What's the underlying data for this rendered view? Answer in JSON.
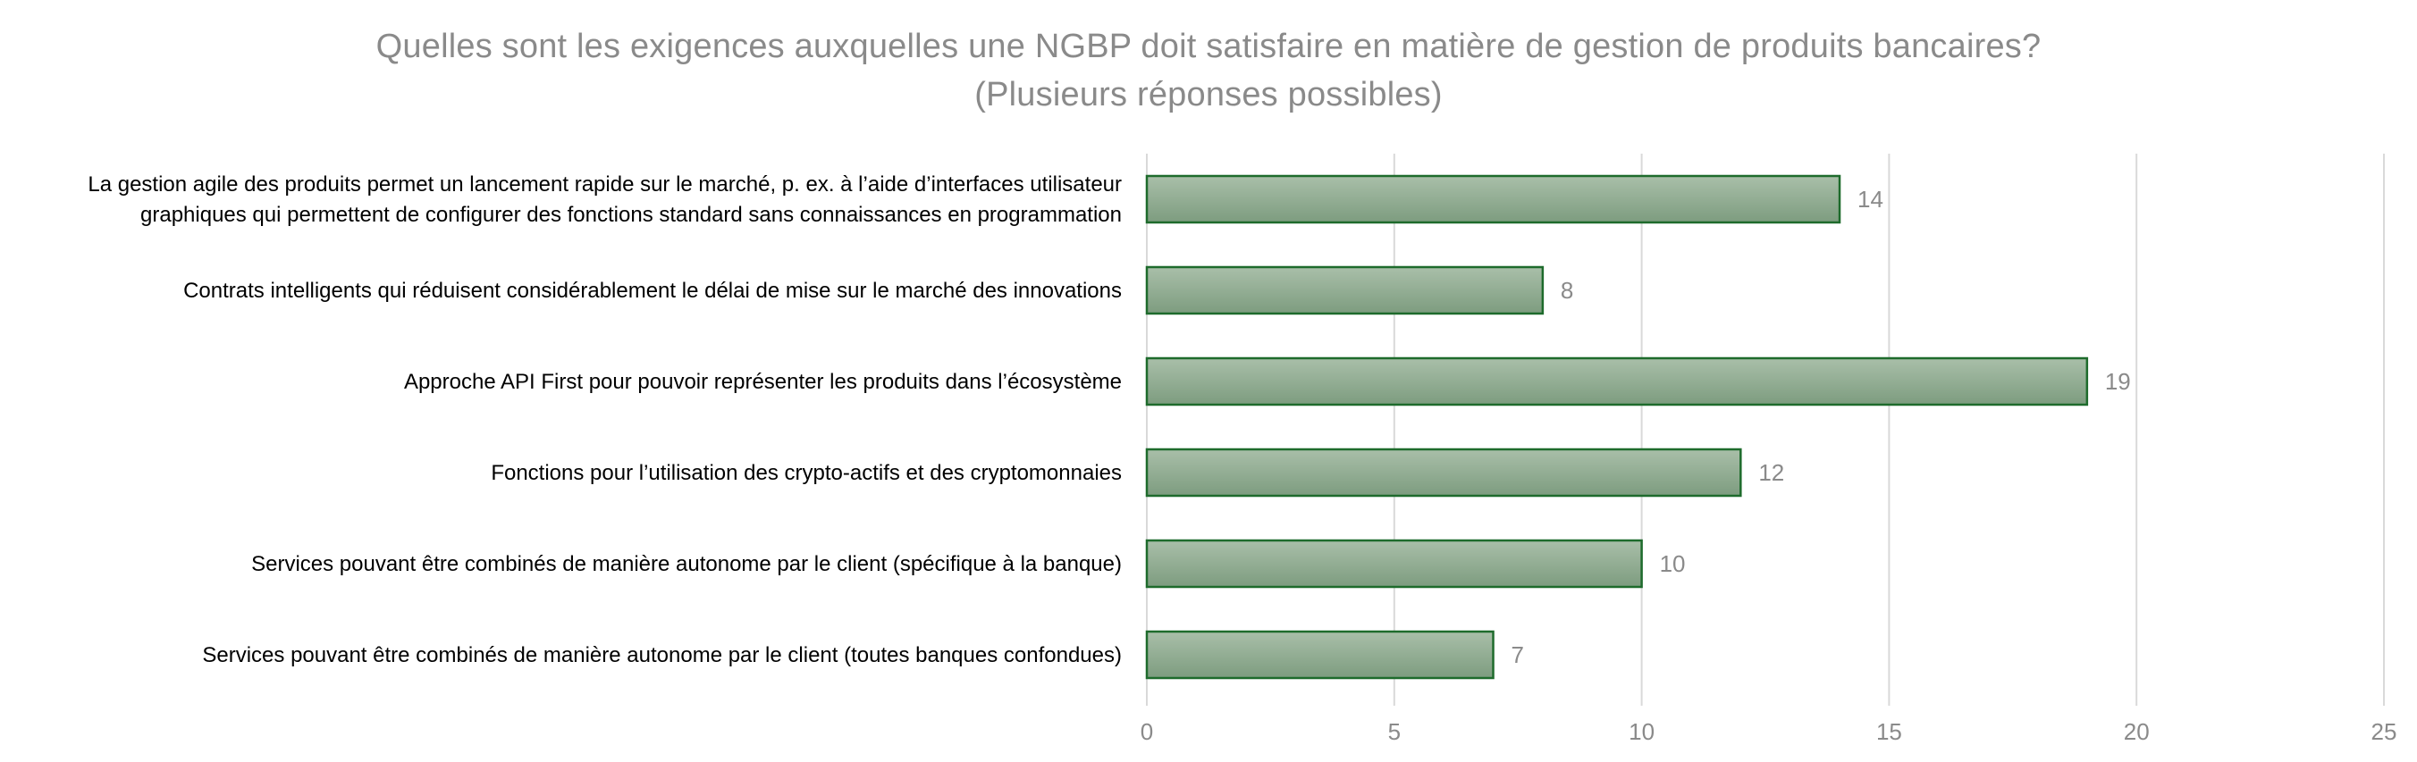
{
  "title": {
    "line1": "Quelles sont les exigences auxquelles une NGBP doit satisfaire en matière de gestion de produits bancaires?",
    "line2": "(Plusieurs réponses possibles)"
  },
  "colors": {
    "bar_fill_top": "#a9bfa9",
    "bar_fill_bottom": "#7d9c7f",
    "bar_stroke": "#1e6b2c",
    "gridline": "#d9d9d9",
    "label_text": "#000000",
    "value_text": "#8a8a8a",
    "tick_text": "#8a8a8a"
  },
  "chart_data": {
    "type": "bar",
    "orientation": "horizontal",
    "title": "Quelles sont les exigences auxquelles une NGBP doit satisfaire en matière de gestion de produits bancaires? (Plusieurs réponses possibles)",
    "categories": [
      [
        "La gestion agile des produits permet un lancement rapide sur le marché, p. ex. à l’aide d’interfaces utilisateur",
        "graphiques qui permettent de configurer des fonctions standard sans connaissances en programmation"
      ],
      [
        "Contrats intelligents qui réduisent considérablement le délai de mise sur le marché des innovations"
      ],
      [
        "Approche API First pour pouvoir représenter les produits dans l’écosystème"
      ],
      [
        "Fonctions pour l’utilisation des crypto-actifs et des cryptomonnaies"
      ],
      [
        "Services pouvant être combinés de manière autonome par le client (spécifique à la banque)"
      ],
      [
        "Services pouvant être combinés de manière autonome par le client (toutes banques confondues)"
      ]
    ],
    "values": [
      14,
      8,
      19,
      12,
      10,
      7
    ],
    "data_labels": [
      "14",
      "8",
      "19",
      "12",
      "10",
      "7"
    ],
    "xlim": [
      0,
      25
    ],
    "ticks": [
      0,
      5,
      10,
      15,
      20,
      25
    ],
    "tick_labels": [
      "0",
      "5",
      "10",
      "15",
      "20",
      "25"
    ],
    "grid": true,
    "legend": "none",
    "xlabel": "",
    "ylabel": ""
  }
}
